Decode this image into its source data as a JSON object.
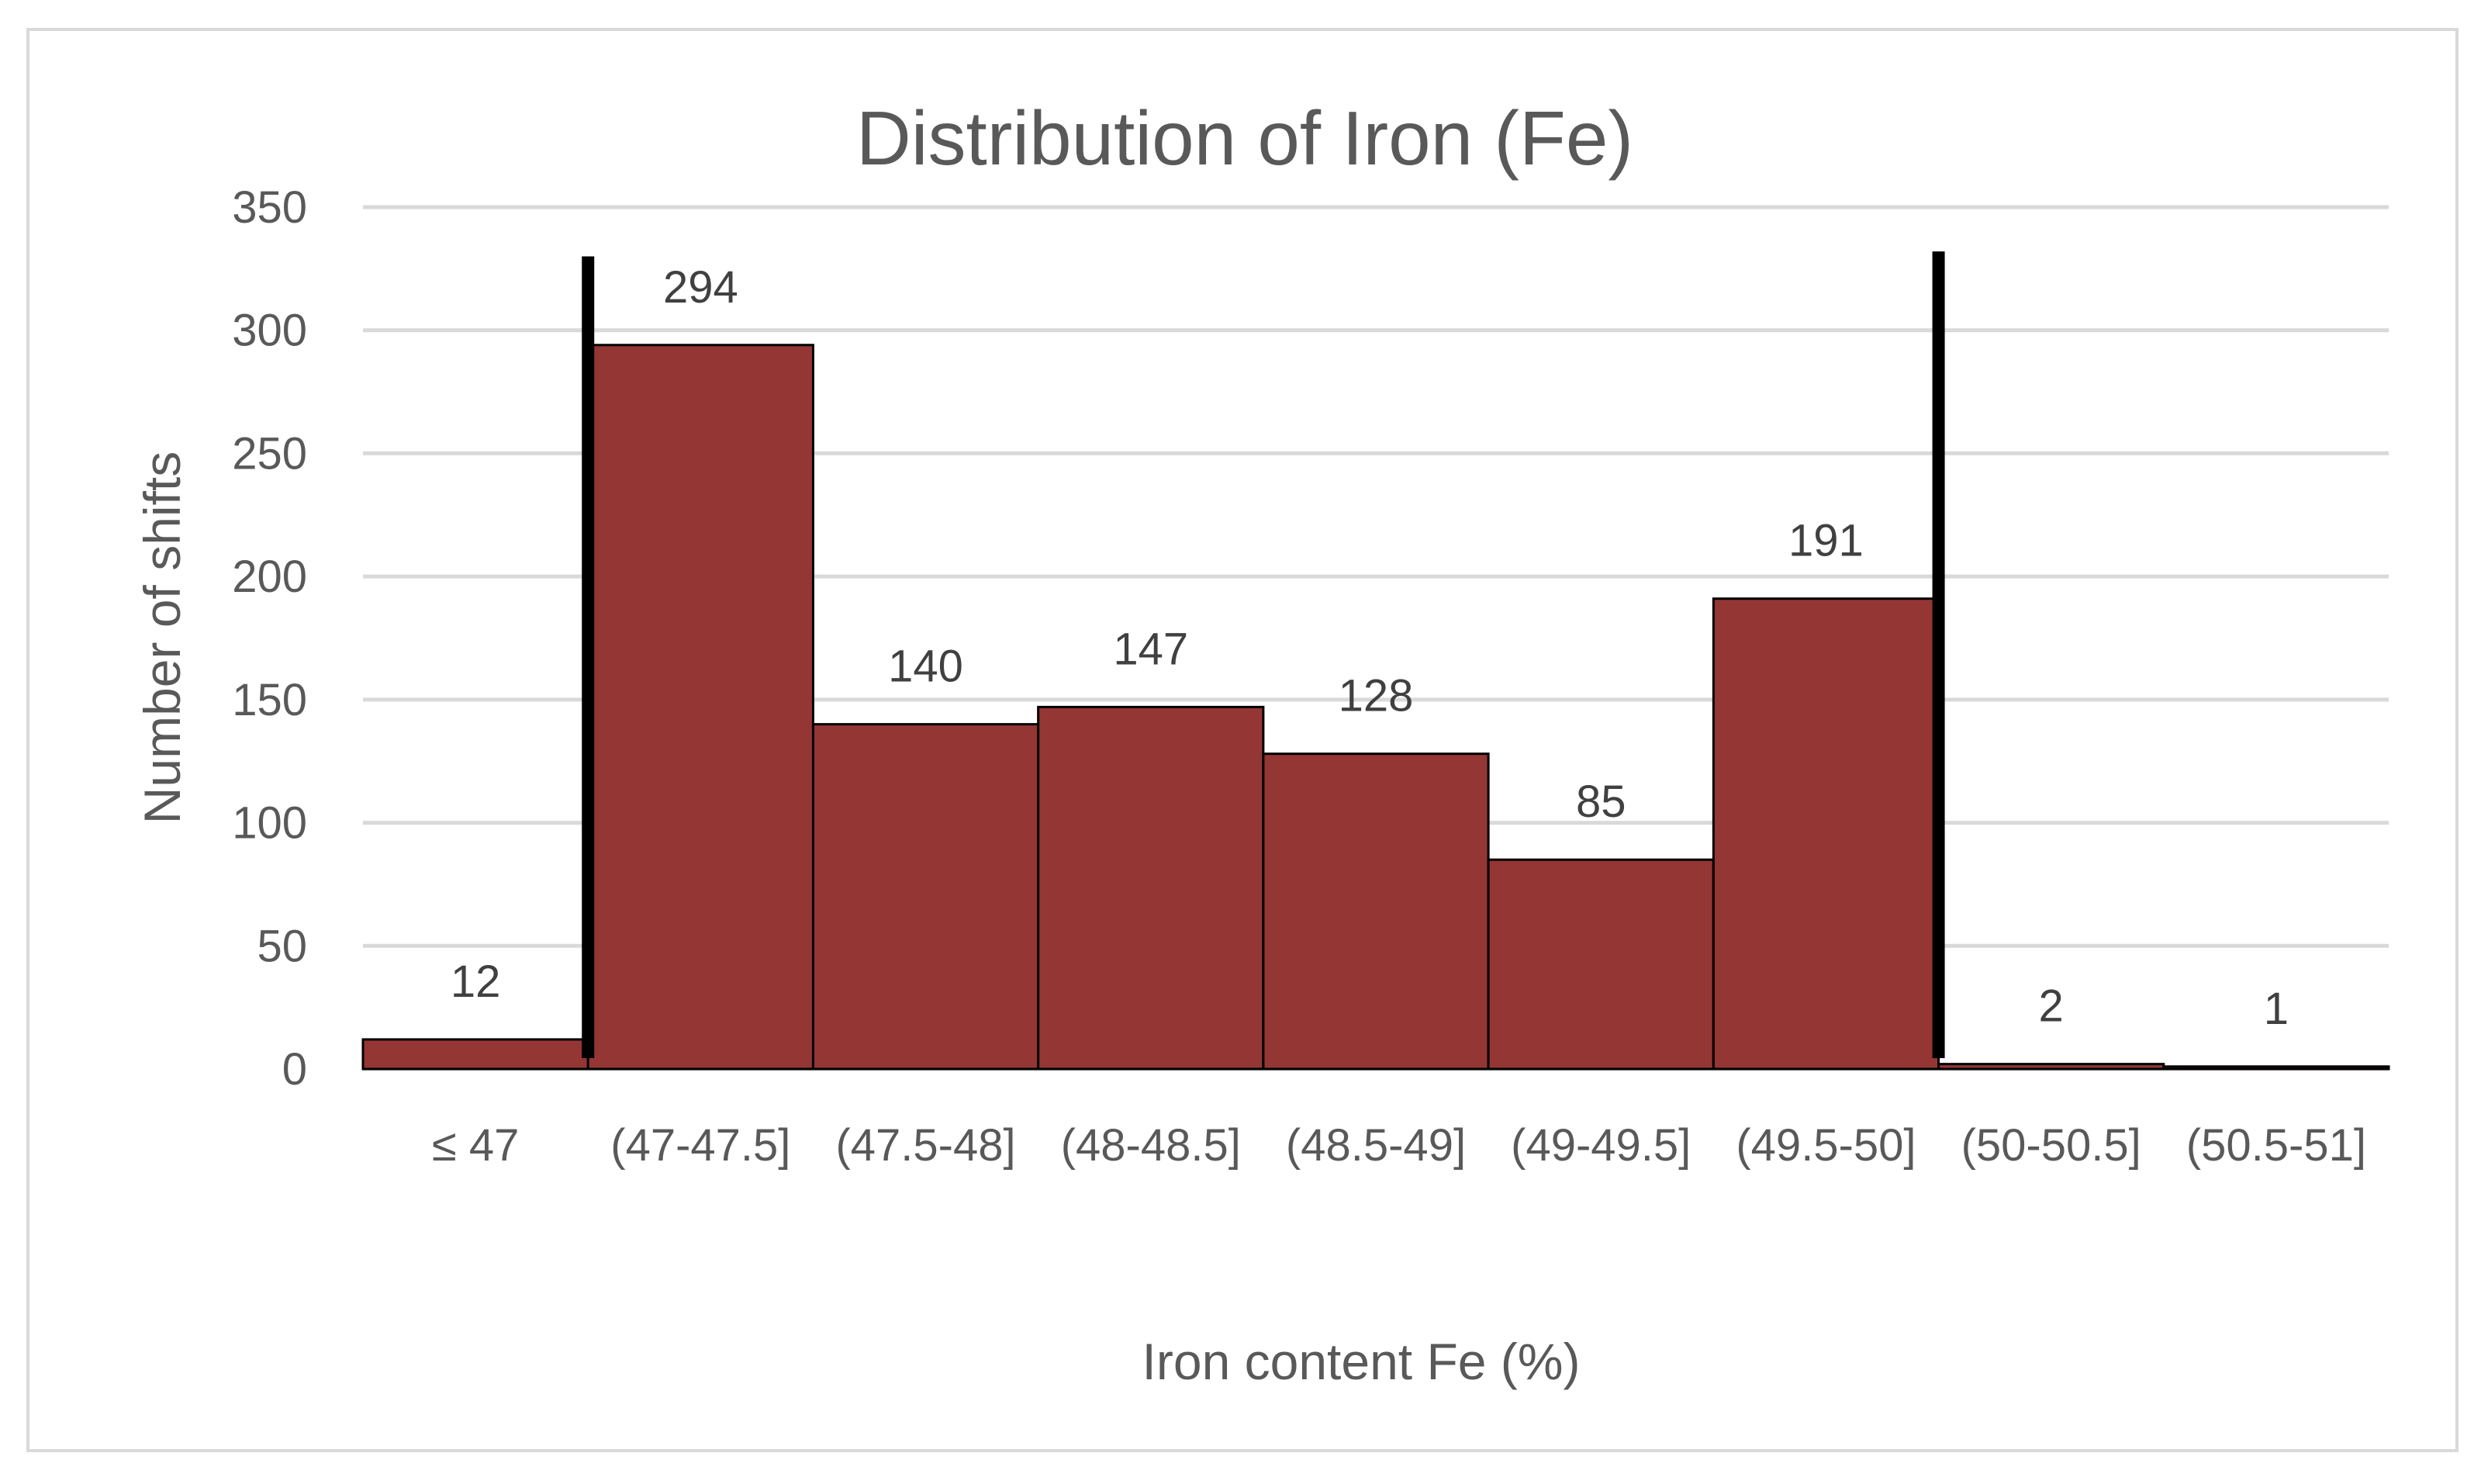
{
  "chart_data": {
    "type": "bar",
    "title": "Distribution of Iron (Fe)",
    "xlabel": "Iron content Fe (%)",
    "ylabel": "Number of shifts",
    "categories": [
      "≤ 47",
      "(47-47.5]",
      "(47.5-48]",
      "(48-48.5]",
      "(48.5-49]",
      "(49-49.5]",
      "(49.5-50]",
      "(50-50.5]",
      "(50.5-51]"
    ],
    "values": [
      12,
      294,
      140,
      147,
      128,
      85,
      191,
      2,
      1
    ],
    "data_labels": [
      "12",
      "294",
      "140",
      "147",
      "128",
      "85",
      "191",
      "2",
      "1"
    ],
    "ylim": [
      0,
      350
    ],
    "yticks": [
      0,
      50,
      100,
      150,
      200,
      250,
      300,
      350
    ],
    "ytick_labels": [
      "0",
      "50",
      "100",
      "150",
      "200",
      "250",
      "300",
      "350"
    ],
    "grid": true,
    "legend": "none",
    "bar_color": "#943634",
    "reference_lines": [
      {
        "at_boundary": "≤ 47 | (47-47.5]",
        "y_top": 330
      },
      {
        "at_boundary": "(49.5-50] | (50-50.5]",
        "y_top": 332
      }
    ]
  }
}
